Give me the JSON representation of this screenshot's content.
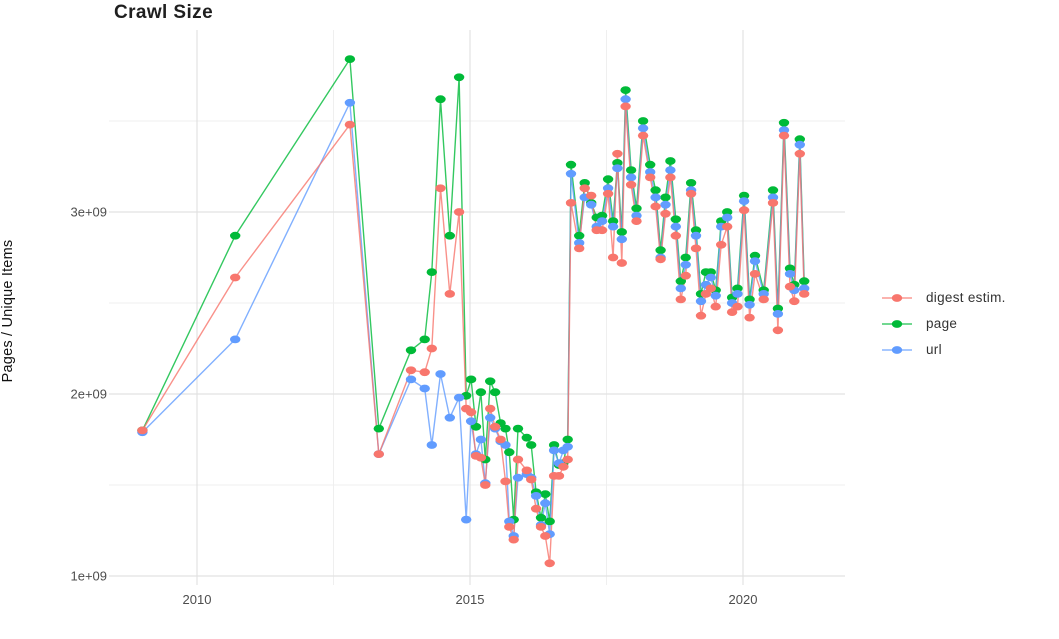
{
  "page": {
    "title": "Crawl Size"
  },
  "colors": {
    "digest": "#F8766D",
    "page": "#00BA38",
    "url": "#619CFF",
    "grid_major": "#E2E2E2",
    "grid_minor": "#EFEFEF",
    "tick_text": "#4d4d4d",
    "title_text": "#1f1f1f"
  },
  "legend": {
    "position": "right",
    "items": [
      {
        "label": "digest estim.",
        "color": "#F8766D"
      },
      {
        "label": "page",
        "color": "#00BA38"
      },
      {
        "label": "url",
        "color": "#619CFF"
      }
    ]
  },
  "chart_data": {
    "type": "line",
    "title": "Crawl Size",
    "xlabel": "",
    "ylabel": "Pages / Unique Items",
    "values_unit": "pages (billions, 1e9)",
    "grid": true,
    "legend_position": "right",
    "xlim": [
      2008.4,
      2021.8
    ],
    "ylim_billions": [
      0.95,
      4.0
    ],
    "x_ticks": [
      {
        "v": 2010,
        "label": "2010"
      },
      {
        "v": 2015,
        "label": "2015"
      },
      {
        "v": 2020,
        "label": "2020"
      }
    ],
    "x_minor_ticks": [
      2012.5,
      2017.5
    ],
    "y_ticks": [
      {
        "v": 1,
        "label": "1e+09"
      },
      {
        "v": 2,
        "label": "2e+09"
      },
      {
        "v": 3,
        "label": "3e+09"
      }
    ],
    "y_minor_ticks": [
      1.5,
      2.5,
      3.5
    ],
    "x": [
      2009.0,
      2010.7,
      2012.8,
      2013.33,
      2013.92,
      2014.17,
      2014.3,
      2014.46,
      2014.63,
      2014.8,
      2014.93,
      2015.02,
      2015.11,
      2015.2,
      2015.28,
      2015.37,
      2015.46,
      2015.56,
      2015.65,
      2015.72,
      2015.8,
      2015.88,
      2016.04,
      2016.12,
      2016.21,
      2016.3,
      2016.38,
      2016.46,
      2016.54,
      2016.63,
      2016.71,
      2016.79,
      2016.85,
      2017.0,
      2017.1,
      2017.22,
      2017.32,
      2017.42,
      2017.53,
      2017.62,
      2017.7,
      2017.78,
      2017.85,
      2017.95,
      2018.05,
      2018.17,
      2018.3,
      2018.4,
      2018.49,
      2018.58,
      2018.67,
      2018.77,
      2018.86,
      2018.95,
      2019.05,
      2019.14,
      2019.23,
      2019.32,
      2019.41,
      2019.5,
      2019.6,
      2019.71,
      2019.8,
      2019.9,
      2020.02,
      2020.12,
      2020.22,
      2020.38,
      2020.55,
      2020.64,
      2020.75,
      2020.86,
      2020.94,
      2021.04,
      2021.12
    ],
    "series": [
      {
        "name": "digest estim.",
        "color": "#F8766D",
        "values_billions": [
          1.8,
          2.64,
          3.48,
          1.67,
          2.13,
          2.12,
          2.25,
          3.13,
          2.55,
          3.0,
          1.92,
          1.9,
          1.66,
          1.65,
          1.5,
          1.92,
          1.82,
          1.75,
          1.52,
          1.27,
          1.2,
          1.64,
          1.58,
          1.53,
          1.37,
          1.27,
          1.22,
          1.07,
          1.55,
          1.55,
          1.6,
          1.64,
          3.05,
          2.8,
          3.13,
          3.09,
          2.9,
          2.9,
          3.1,
          2.75,
          3.32,
          2.72,
          3.58,
          3.15,
          2.95,
          3.42,
          3.19,
          3.03,
          2.74,
          2.99,
          3.19,
          2.87,
          2.52,
          2.65,
          3.1,
          2.8,
          2.43,
          2.55,
          2.58,
          2.48,
          2.82,
          2.92,
          2.45,
          2.48,
          3.01,
          2.42,
          2.66,
          2.52,
          3.05,
          2.35,
          3.42,
          2.59,
          2.51,
          3.32,
          2.55
        ]
      },
      {
        "name": "page",
        "color": "#00BA38",
        "values_billions": [
          1.8,
          2.87,
          3.84,
          1.81,
          2.24,
          2.3,
          2.67,
          3.62,
          2.87,
          3.74,
          1.99,
          2.08,
          1.82,
          2.01,
          1.64,
          2.07,
          2.01,
          1.84,
          1.81,
          1.68,
          1.31,
          1.81,
          1.76,
          1.72,
          1.46,
          1.32,
          1.45,
          1.3,
          1.72,
          1.61,
          1.62,
          1.75,
          3.26,
          2.87,
          3.16,
          3.05,
          2.97,
          2.98,
          3.18,
          2.95,
          3.27,
          2.89,
          3.67,
          3.23,
          3.02,
          3.5,
          3.26,
          3.12,
          2.79,
          3.08,
          3.28,
          2.96,
          2.62,
          2.75,
          3.16,
          2.9,
          2.55,
          2.67,
          2.67,
          2.57,
          2.95,
          3.0,
          2.53,
          2.58,
          3.09,
          2.52,
          2.76,
          2.57,
          3.12,
          2.47,
          3.49,
          2.69,
          2.6,
          3.4,
          2.62
        ]
      },
      {
        "name": "url",
        "color": "#619CFF",
        "values_billions": [
          1.79,
          2.3,
          3.6,
          1.67,
          2.08,
          2.03,
          1.72,
          2.11,
          1.87,
          1.98,
          1.31,
          1.85,
          1.67,
          1.75,
          1.51,
          1.87,
          1.81,
          1.74,
          1.72,
          1.3,
          1.22,
          1.54,
          1.56,
          1.54,
          1.44,
          1.28,
          1.4,
          1.23,
          1.69,
          1.62,
          1.69,
          1.71,
          3.21,
          2.83,
          3.08,
          3.04,
          2.92,
          2.95,
          3.13,
          2.92,
          3.24,
          2.85,
          3.62,
          3.19,
          2.98,
          3.46,
          3.22,
          3.08,
          2.75,
          3.04,
          3.23,
          2.92,
          2.58,
          2.71,
          3.12,
          2.87,
          2.51,
          2.6,
          2.64,
          2.54,
          2.92,
          2.97,
          2.5,
          2.55,
          3.06,
          2.49,
          2.73,
          2.55,
          3.08,
          2.44,
          3.45,
          2.66,
          2.57,
          3.37,
          2.58
        ]
      }
    ]
  }
}
